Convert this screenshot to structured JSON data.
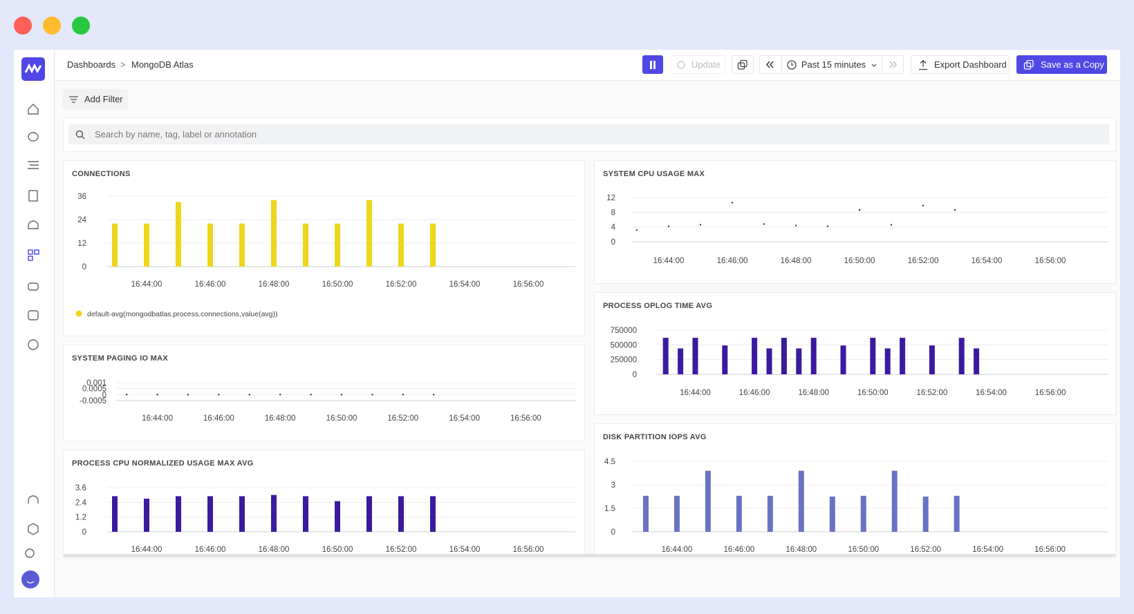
{
  "breadcrumb": {
    "items": [
      "Dashboards",
      "MongoDB Atlas"
    ],
    "separator": ">"
  },
  "toolbar": {
    "update": "Update",
    "time_range": "Past 15 minutes",
    "export": "Export Dashboard",
    "save": "Save as a Copy"
  },
  "filter": {
    "add_filter": "Add Filter",
    "search_placeholder": "Search by name, tag, label or annotation"
  },
  "chart_data": [
    {
      "type": "bar",
      "title": "CONNECTIONS",
      "categories": [
        null,
        "16:44:00",
        null,
        "16:46:00",
        null,
        "16:48:00",
        null,
        "16:50:00",
        null,
        "16:52:00",
        null,
        "16:54:00",
        null,
        "16:56:00",
        null
      ],
      "series": [
        {
          "name": "default-avg(mongodbatlas.process.connections,value(avg))",
          "color": "#ecd71c",
          "values": [
            22,
            22,
            33,
            22,
            22,
            34,
            22,
            22,
            34,
            22,
            22,
            null,
            null,
            null,
            null
          ]
        }
      ],
      "ylim": [
        0,
        36
      ],
      "yticks": [
        0,
        12,
        24,
        36
      ],
      "grid": true
    },
    {
      "type": "scatter",
      "title": "SYSTEM PAGING IO MAX",
      "categories": [
        null,
        "16:44:00",
        null,
        "16:46:00",
        null,
        "16:48:00",
        null,
        "16:50:00",
        null,
        "16:52:00",
        null,
        "16:54:00",
        null,
        "16:56:00",
        null
      ],
      "series": [
        {
          "color": "#333333",
          "values": [
            0,
            0,
            0,
            0,
            0,
            0,
            0,
            0,
            0,
            0,
            0,
            null,
            null,
            null,
            null
          ]
        }
      ],
      "ylim": [
        -0.0005,
        0.001
      ],
      "yticks": [
        -0.0005,
        0,
        0.0005,
        0.001
      ],
      "grid": true
    },
    {
      "type": "bar",
      "title": "PROCESS CPU NORMALIZED USAGE MAX AVG",
      "categories": [
        null,
        "16:44:00",
        null,
        "16:46:00",
        null,
        "16:48:00",
        null,
        "16:50:00",
        null,
        "16:52:00",
        null,
        "16:54:00",
        null,
        "16:56:00",
        null
      ],
      "series": [
        {
          "color": "#3b1aa0",
          "values": [
            2.9,
            2.7,
            2.9,
            2.9,
            2.9,
            3.0,
            2.9,
            2.5,
            2.9,
            2.9,
            2.9,
            null,
            null,
            null,
            null
          ]
        }
      ],
      "ylim": [
        0,
        3.6
      ],
      "yticks": [
        0,
        1.2,
        2.4,
        3.6
      ],
      "grid": true
    },
    {
      "type": "scatter",
      "title": "SYSTEM CPU USAGE MAX",
      "categories": [
        null,
        "16:44:00",
        null,
        "16:46:00",
        null,
        "16:48:00",
        null,
        "16:50:00",
        null,
        "16:52:00",
        null,
        "16:54:00",
        null,
        "16:56:00",
        null
      ],
      "series": [
        {
          "color": "#333333",
          "values": [
            3.2,
            4.2,
            4.6,
            10.6,
            4.8,
            4.4,
            4.2,
            8.6,
            4.6,
            9.8,
            8.6,
            null,
            null,
            null,
            null
          ]
        }
      ],
      "ylim": [
        0,
        12
      ],
      "yticks": [
        0,
        4,
        8,
        12
      ],
      "grid": true
    },
    {
      "type": "bar",
      "title": "PROCESS OPLOG TIME AVG",
      "categories": [
        null,
        null,
        "16:44:00",
        null,
        null,
        null,
        "16:46:00",
        null,
        null,
        null,
        "16:48:00",
        null,
        null,
        null,
        "16:50:00",
        null,
        null,
        null,
        "16:52:00",
        null,
        null,
        null,
        "16:54:00",
        null,
        null,
        null,
        "16:56:00",
        null,
        null,
        null
      ],
      "series": [
        {
          "color": "#3b1aa0",
          "values": [
            620000,
            440000,
            620000,
            null,
            490000,
            null,
            620000,
            440000,
            620000,
            440000,
            620000,
            null,
            490000,
            null,
            620000,
            440000,
            620000,
            null,
            490000,
            null,
            620000,
            440000,
            null,
            null,
            null,
            null,
            null,
            null,
            null,
            null
          ]
        }
      ],
      "ylim": [
        0,
        750000
      ],
      "yticks": [
        0,
        250000,
        500000,
        750000
      ],
      "grid": true
    },
    {
      "type": "bar",
      "title": "DISK PARTITION IOPS AVG",
      "categories": [
        null,
        "16:44:00",
        null,
        "16:46:00",
        null,
        "16:48:00",
        null,
        "16:50:00",
        null,
        "16:52:00",
        null,
        "16:54:00",
        null,
        "16:56:00",
        null
      ],
      "series": [
        {
          "color": "#6b72c4",
          "values": [
            2.3,
            2.3,
            3.9,
            2.3,
            2.3,
            3.9,
            2.25,
            2.3,
            3.9,
            2.25,
            2.3,
            null,
            null,
            null,
            null
          ]
        }
      ],
      "ylim": [
        0,
        4.5
      ],
      "yticks": [
        0,
        1.5,
        3,
        4.5
      ],
      "grid": true
    }
  ]
}
